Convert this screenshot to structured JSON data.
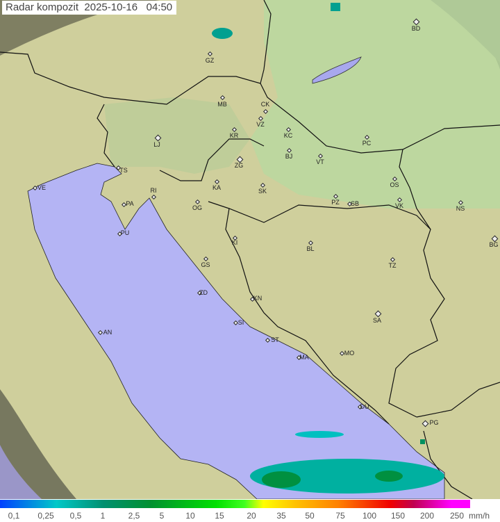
{
  "title": "Radar kompozit  2025-10-16   04:50",
  "legend": {
    "ticks": [
      "0,1",
      "0,25",
      "0,5",
      "1",
      "2,5",
      "5",
      "10",
      "15",
      "20",
      "35",
      "50",
      "75",
      "100",
      "150",
      "200",
      "250"
    ],
    "unit": "mm/h"
  },
  "colors": {
    "land": "#c9c99a",
    "outside": "#8a8a6a",
    "sea": "#b4b4f4",
    "border": "#111111"
  },
  "cities": [
    "GZ",
    "MB",
    "CK",
    "VZ",
    "KR",
    "KC",
    "PC",
    "LJ",
    "BJ",
    "VT",
    "TS",
    "ZG",
    "VE",
    "RI",
    "KA",
    "SK",
    "OS",
    "PA",
    "OG",
    "PZ",
    "SB",
    "VK",
    "NS",
    "PU",
    "BG",
    "KI",
    "BL",
    "GS",
    "TZ",
    "ZD",
    "KN",
    "SA",
    "AN",
    "SI",
    "ST",
    "MA",
    "MO",
    "DU",
    "PG",
    "BD"
  ]
}
